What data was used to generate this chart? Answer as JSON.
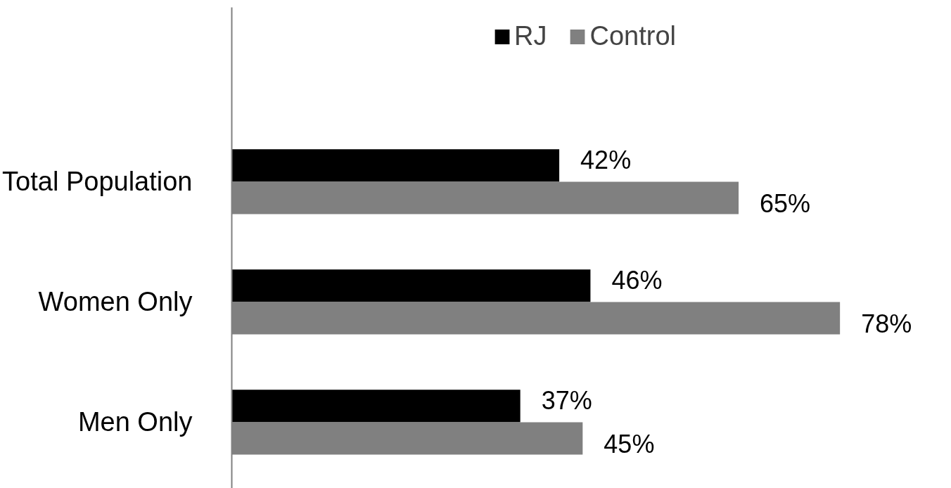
{
  "chart_data": {
    "type": "bar",
    "orientation": "horizontal",
    "categories": [
      "Total Population",
      "Women Only",
      "Men Only"
    ],
    "series": [
      {
        "name": "RJ",
        "color": "#000000",
        "values": [
          42,
          46,
          37
        ],
        "value_labels": [
          "42%",
          "46%",
          "37%"
        ]
      },
      {
        "name": "Control",
        "color": "#808080",
        "values": [
          65,
          78,
          45
        ],
        "value_labels": [
          "65%",
          "78%",
          "45%"
        ]
      }
    ],
    "grid": false,
    "legend": "top"
  }
}
